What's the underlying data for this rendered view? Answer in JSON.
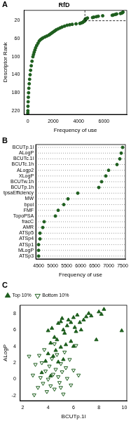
{
  "chart_data": [
    {
      "panel": "A",
      "type": "scatter",
      "title": "RfD",
      "x_label": "Frequency of use",
      "y_label": "Descriptor Rank",
      "x": [
        7500,
        7450,
        7400,
        7300,
        7000,
        6900,
        6750,
        6650,
        5900,
        5550,
        5400,
        5200,
        5100,
        4700,
        4650,
        4550,
        4550,
        4500,
        4500,
        4500,
        4450,
        4400,
        4350,
        4300,
        4200,
        4100,
        3800,
        3500,
        3300,
        3100,
        2900,
        2700,
        2550,
        2400,
        2250,
        2150,
        2050,
        1950,
        1850,
        1750,
        1650,
        1500,
        1350,
        1200,
        1100,
        1000,
        900,
        800,
        700,
        620,
        560,
        500,
        450,
        400,
        330,
        270,
        220,
        180,
        140,
        110,
        80,
        60,
        40,
        25,
        12,
        3,
        0
      ],
      "values": [
        1,
        2,
        3,
        4,
        5,
        6,
        7,
        8,
        9,
        10,
        11,
        12,
        13,
        14,
        15,
        16,
        17,
        18,
        19,
        20,
        21,
        22,
        23,
        24,
        25,
        26,
        27,
        28,
        29,
        30,
        32,
        34,
        36,
        38,
        40,
        42,
        44,
        46,
        48,
        50,
        52,
        54,
        56,
        58,
        60,
        62,
        65,
        70,
        75,
        80,
        85,
        90,
        95,
        100,
        110,
        120,
        130,
        140,
        150,
        160,
        170,
        180,
        190,
        200,
        210,
        220,
        225
      ],
      "color": "#1e5e1e",
      "marker": "circle",
      "xlim": [
        -300,
        7800
      ],
      "xticks": [
        0,
        2000,
        4000,
        6000
      ],
      "ylim": [
        228,
        -3
      ],
      "yticks": [
        20,
        60,
        100,
        140,
        180,
        220
      ],
      "grid": false,
      "reference_lines": {
        "x": 4500,
        "y": 20
      }
    },
    {
      "panel": "B",
      "type": "dot",
      "orientation": "horizontal",
      "x_label": "Frequency of use",
      "categories": [
        "BCUTp.1l",
        "ALogP",
        "BCUTc.1l",
        "BCUTc.1h",
        "ALogp2",
        "XLogP",
        "BCUTw.1h",
        "BCUTp.1h",
        "tpsaEfficiency",
        "MW",
        "bpol",
        "FMF",
        "TopoPSA",
        "fracC",
        "AMR",
        "ATSp5",
        "ATSp4",
        "ATSp1",
        "MLogP",
        "ATSp3"
      ],
      "values": [
        7500,
        7450,
        7400,
        7300,
        7000,
        6900,
        6750,
        6650,
        5900,
        5550,
        5400,
        5200,
        5100,
        4700,
        4650,
        4550,
        4550,
        4500,
        4500,
        4500
      ],
      "color": "#1e5e1e",
      "marker": "circle",
      "xlim": [
        4400,
        7600
      ],
      "xticks": [
        4500,
        5000,
        5500,
        6000,
        6500,
        7000,
        7500
      ],
      "grid": true
    },
    {
      "panel": "C",
      "type": "scatter",
      "x_label": "BCUTp.1l",
      "y_label": "ALogP",
      "xlim": [
        1.8,
        10.2
      ],
      "xticks": [
        2,
        4,
        6,
        8,
        10
      ],
      "ylim": [
        -2.6,
        9
      ],
      "yticks": [
        -2,
        0,
        2,
        4,
        6,
        8
      ],
      "grid": false,
      "legend": "top-left",
      "series": [
        {
          "name": "Top 10%",
          "color": "#1e5e1e",
          "marker": "triangle",
          "x": [
            4.0,
            4.3,
            4.5,
            4.7,
            4.8,
            5.0,
            5.1,
            5.2,
            5.3,
            5.5,
            5.6,
            5.8,
            6.0,
            6.1,
            6.2,
            6.3,
            6.5,
            6.6,
            6.8,
            7.0,
            7.2,
            7.4,
            8.0,
            8.2,
            8.4,
            9.8,
            4.6,
            5.0,
            5.4,
            4.2,
            4.4,
            5.8,
            6.0,
            5.2,
            4.8,
            4.0,
            3.5,
            4.2,
            3.8,
            7.8
          ],
          "values": [
            5.9,
            6.2,
            5.1,
            4.8,
            6.8,
            7.0,
            7.4,
            6.0,
            5.6,
            6.5,
            7.2,
            6.9,
            7.5,
            6.3,
            5.8,
            7.8,
            6.9,
            6.0,
            7.2,
            7.6,
            8.0,
            7.7,
            8.2,
            7.9,
            8.5,
            5.9,
            3.5,
            3.9,
            4.2,
            4.4,
            2.8,
            4.6,
            4.0,
            2.4,
            2.1,
            3.1,
            0.8,
            0.4,
            2.2,
            4.8
          ]
        },
        {
          "name": "Bottom 10%",
          "color": "#1e5e1e",
          "marker": "triangle-down-open",
          "x": [
            2.5,
            2.8,
            3.0,
            3.2,
            3.4,
            3.5,
            3.6,
            3.8,
            3.9,
            4.0,
            4.1,
            4.2,
            4.3,
            4.4,
            4.5,
            4.6,
            4.7,
            4.8,
            4.9,
            5.0,
            5.1,
            5.2,
            5.3,
            5.4,
            5.5,
            5.7,
            5.8,
            6.0,
            6.2,
            6.4,
            3.3,
            2.9,
            4.5,
            5.0,
            3.7
          ],
          "values": [
            2.8,
            0.5,
            1.8,
            -1.0,
            0.2,
            2.0,
            -0.5,
            1.0,
            -1.5,
            0.0,
            1.6,
            -0.8,
            2.5,
            0.6,
            -1.2,
            1.2,
            3.0,
            0.3,
            -0.4,
            1.9,
            0.9,
            -1.8,
            3.3,
            1.4,
            0.1,
            2.4,
            -0.7,
            1.1,
            4.1,
            0.5,
            2.9,
            -1.9,
            4.3,
            -1.0,
            3.6
          ]
        }
      ]
    }
  ]
}
